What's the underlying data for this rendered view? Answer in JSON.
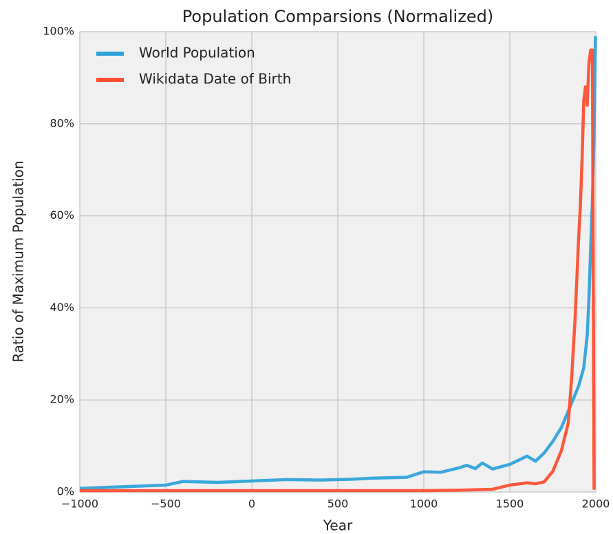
{
  "chart_data": {
    "type": "line",
    "title": "Population Comparsions (Normalized)",
    "xlabel": "Year",
    "ylabel": "Ratio of Maximum Population",
    "xlim": [
      -1000,
      2000
    ],
    "ylim": [
      0,
      100
    ],
    "xticks": [
      {
        "value": -1000,
        "label": "−1000"
      },
      {
        "value": -500,
        "label": "−500"
      },
      0,
      500,
      1000,
      1500,
      2000
    ],
    "yticks": [
      {
        "value": 0,
        "label": "0%"
      },
      {
        "value": 20,
        "label": "20%"
      },
      {
        "value": 40,
        "label": "40%"
      },
      {
        "value": 60,
        "label": "60%"
      },
      {
        "value": 80,
        "label": "80%"
      },
      {
        "value": 100,
        "label": "100%"
      }
    ],
    "grid": true,
    "legend": "upper left",
    "series": [
      {
        "name": "World Population",
        "color": "#30a2da",
        "x": [
          -1000,
          -500,
          -400,
          -200,
          0,
          200,
          400,
          500,
          600,
          700,
          800,
          900,
          1000,
          1100,
          1200,
          1250,
          1300,
          1340,
          1400,
          1500,
          1600,
          1650,
          1700,
          1750,
          1800,
          1850,
          1900,
          1930,
          1950,
          1960,
          1970,
          1980,
          1990,
          1998
        ],
        "values": [
          0.8,
          1.5,
          2.3,
          2.1,
          2.4,
          2.7,
          2.6,
          2.7,
          2.8,
          3.0,
          3.1,
          3.2,
          4.4,
          4.3,
          5.2,
          5.8,
          5.1,
          6.3,
          5.0,
          6.0,
          7.8,
          6.7,
          8.5,
          11,
          14,
          18.5,
          23,
          27,
          34,
          42,
          53,
          63,
          78,
          99
        ]
      },
      {
        "name": "Wikidata Date of Birth",
        "color": "#fc4f30",
        "x": [
          -1000,
          -500,
          0,
          500,
          1000,
          1200,
          1400,
          1500,
          1600,
          1650,
          1700,
          1750,
          1800,
          1840,
          1860,
          1880,
          1900,
          1910,
          1920,
          1930,
          1940,
          1950,
          1960,
          1970,
          1980,
          1990
        ],
        "values": [
          0.3,
          0.3,
          0.3,
          0.3,
          0.3,
          0.4,
          0.6,
          1.5,
          2.0,
          1.8,
          2.2,
          4.5,
          9.0,
          15,
          25,
          38,
          55,
          62,
          72,
          85,
          88,
          84,
          93,
          96,
          96,
          0.5
        ]
      }
    ]
  }
}
